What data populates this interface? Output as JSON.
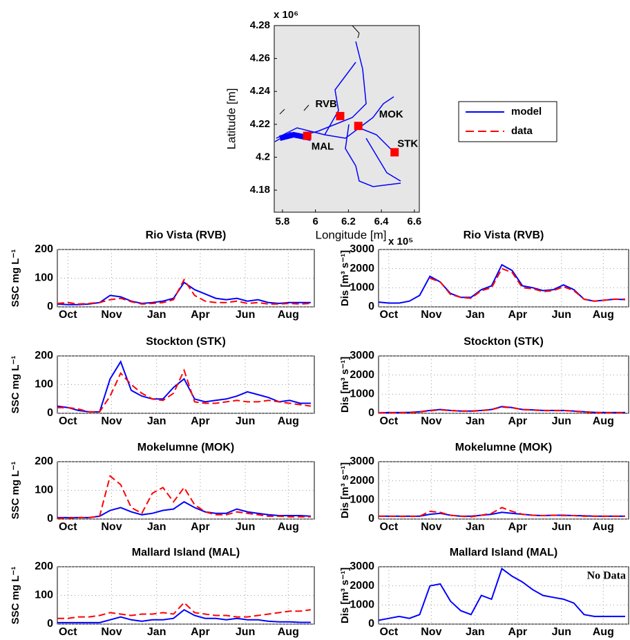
{
  "chart_data": [
    {
      "type": "map",
      "xlabel": "Longitude [m]",
      "ylabel": "Latitude [m]",
      "xmultiplier": "x 10⁵",
      "ymultiplier": "x 10⁶",
      "xlim": [
        5.75,
        6.63
      ],
      "ylim": [
        4.1666,
        4.28
      ],
      "xticks": [
        5.8,
        6,
        6.2,
        6.4,
        6.6
      ],
      "yticks": [
        4.18,
        4.2,
        4.22,
        4.24,
        4.26,
        4.28
      ],
      "stations": [
        {
          "label": "RVB",
          "x": 6.15,
          "y": 4.225
        },
        {
          "label": "MOK",
          "x": 6.26,
          "y": 4.219
        },
        {
          "label": "MAL",
          "x": 5.95,
          "y": 4.213
        },
        {
          "label": "STK",
          "x": 6.48,
          "y": 4.203
        }
      ],
      "station_color": "#ff0000",
      "legend": [
        {
          "name": "model",
          "color": "#0000ff",
          "dash": false
        },
        {
          "name": "data",
          "color": "#ff0000",
          "dash": true
        }
      ]
    },
    {
      "type": "line",
      "title": "Rio Vista (RVB)",
      "ylabel": "SSC mg L⁻¹",
      "x": [
        0,
        15,
        30,
        45,
        60,
        75,
        90,
        105,
        120,
        135,
        150,
        165,
        180,
        195,
        210,
        225,
        240,
        255,
        270,
        285,
        300,
        315,
        330,
        345,
        360
      ],
      "xlim": [
        0,
        365
      ],
      "xticks": [
        {
          "value": 15,
          "label": "Oct"
        },
        {
          "value": 77,
          "label": "Nov"
        },
        {
          "value": 141,
          "label": "Jan"
        },
        {
          "value": 203,
          "label": "Apr"
        },
        {
          "value": 267,
          "label": "Jun"
        },
        {
          "value": 328,
          "label": "Aug"
        }
      ],
      "ylim": [
        0,
        200
      ],
      "yticks": [
        0,
        100,
        200
      ],
      "grid": true,
      "series": [
        {
          "color": "#0000ff",
          "dash": false,
          "values": [
            10,
            8,
            8,
            10,
            15,
            40,
            35,
            20,
            12,
            15,
            20,
            30,
            85,
            60,
            45,
            30,
            25,
            30,
            20,
            25,
            15,
            12,
            15,
            15,
            15
          ]
        },
        {
          "color": "#ff0000",
          "dash": true,
          "values": [
            12,
            15,
            10,
            12,
            15,
            25,
            30,
            18,
            10,
            12,
            15,
            25,
            95,
            40,
            20,
            15,
            15,
            20,
            12,
            15,
            10,
            10,
            12,
            10,
            12
          ]
        }
      ]
    },
    {
      "type": "line",
      "title": "Rio Vista (RVB)",
      "ylabel": "Dis [m³ s⁻¹]",
      "x": [
        0,
        15,
        30,
        45,
        60,
        75,
        90,
        105,
        120,
        135,
        150,
        165,
        180,
        195,
        210,
        225,
        240,
        255,
        270,
        285,
        300,
        315,
        330,
        345,
        360
      ],
      "xlim": [
        0,
        365
      ],
      "xticks": [
        {
          "value": 15,
          "label": "Oct"
        },
        {
          "value": 77,
          "label": "Nov"
        },
        {
          "value": 141,
          "label": "Jan"
        },
        {
          "value": 203,
          "label": "Apr"
        },
        {
          "value": 267,
          "label": "Jun"
        },
        {
          "value": 328,
          "label": "Aug"
        }
      ],
      "ylim": [
        0,
        3000
      ],
      "yticks": [
        0,
        1000,
        2000,
        3000
      ],
      "grid": true,
      "series": [
        {
          "color": "#0000ff",
          "dash": false,
          "values": [
            250,
            200,
            200,
            300,
            600,
            1600,
            1300,
            700,
            500,
            500,
            900,
            1100,
            2200,
            1900,
            1100,
            1000,
            850,
            900,
            1150,
            900,
            400,
            300,
            350,
            400,
            380
          ]
        },
        {
          "color": "#ff0000",
          "dash": true,
          "values": [
            null,
            null,
            null,
            null,
            null,
            1500,
            1300,
            650,
            500,
            450,
            850,
            1000,
            2000,
            1800,
            1000,
            950,
            800,
            850,
            1050,
            850,
            400,
            300,
            350,
            400,
            400
          ]
        }
      ]
    },
    {
      "type": "line",
      "title": "Stockton (STK)",
      "ylabel": "SSC mg L⁻¹",
      "x": [
        0,
        15,
        30,
        45,
        60,
        75,
        90,
        105,
        120,
        135,
        150,
        165,
        180,
        195,
        210,
        225,
        240,
        255,
        270,
        285,
        300,
        315,
        330,
        345,
        360
      ],
      "xlim": [
        0,
        365
      ],
      "xticks": [
        {
          "value": 15,
          "label": "Oct"
        },
        {
          "value": 77,
          "label": "Nov"
        },
        {
          "value": 141,
          "label": "Jan"
        },
        {
          "value": 203,
          "label": "Apr"
        },
        {
          "value": 267,
          "label": "Jun"
        },
        {
          "value": 328,
          "label": "Aug"
        }
      ],
      "ylim": [
        0,
        200
      ],
      "yticks": [
        0,
        100,
        200
      ],
      "grid": true,
      "series": [
        {
          "color": "#0000ff",
          "dash": false,
          "values": [
            25,
            20,
            10,
            5,
            5,
            120,
            180,
            80,
            60,
            50,
            50,
            90,
            120,
            50,
            40,
            45,
            50,
            60,
            75,
            65,
            55,
            40,
            45,
            35,
            35
          ]
        },
        {
          "color": "#ff0000",
          "dash": true,
          "values": [
            20,
            20,
            15,
            5,
            5,
            60,
            140,
            100,
            70,
            50,
            45,
            70,
            150,
            40,
            35,
            35,
            40,
            45,
            40,
            40,
            45,
            40,
            35,
            30,
            25
          ]
        }
      ]
    },
    {
      "type": "line",
      "title": "Stockton (STK)",
      "ylabel": "Dis [m³ s⁻¹]",
      "x": [
        0,
        15,
        30,
        45,
        60,
        75,
        90,
        105,
        120,
        135,
        150,
        165,
        180,
        195,
        210,
        225,
        240,
        255,
        270,
        285,
        300,
        315,
        330,
        345,
        360
      ],
      "xlim": [
        0,
        365
      ],
      "xticks": [
        {
          "value": 15,
          "label": "Oct"
        },
        {
          "value": 77,
          "label": "Nov"
        },
        {
          "value": 141,
          "label": "Jan"
        },
        {
          "value": 203,
          "label": "Apr"
        },
        {
          "value": 267,
          "label": "Jun"
        },
        {
          "value": 328,
          "label": "Aug"
        }
      ],
      "ylim": [
        0,
        3000
      ],
      "yticks": [
        0,
        1000,
        2000,
        3000
      ],
      "grid": true,
      "series": [
        {
          "color": "#0000ff",
          "dash": false,
          "values": [
            30,
            40,
            40,
            50,
            80,
            150,
            200,
            150,
            120,
            120,
            150,
            200,
            350,
            300,
            200,
            180,
            150,
            150,
            150,
            120,
            80,
            50,
            40,
            40,
            40
          ]
        },
        {
          "color": "#ff0000",
          "dash": true,
          "values": [
            20,
            30,
            30,
            40,
            70,
            130,
            180,
            140,
            120,
            110,
            140,
            190,
            330,
            290,
            190,
            170,
            140,
            140,
            140,
            110,
            70,
            40,
            30,
            30,
            30
          ]
        }
      ]
    },
    {
      "type": "line",
      "title": "Mokelumne (MOK)",
      "ylabel": "SSC mg L⁻¹",
      "x": [
        0,
        15,
        30,
        45,
        60,
        75,
        90,
        105,
        120,
        135,
        150,
        165,
        180,
        195,
        210,
        225,
        240,
        255,
        270,
        285,
        300,
        315,
        330,
        345,
        360
      ],
      "xlim": [
        0,
        365
      ],
      "xticks": [
        {
          "value": 15,
          "label": "Oct"
        },
        {
          "value": 77,
          "label": "Nov"
        },
        {
          "value": 141,
          "label": "Jan"
        },
        {
          "value": 203,
          "label": "Apr"
        },
        {
          "value": 267,
          "label": "Jun"
        },
        {
          "value": 328,
          "label": "Aug"
        }
      ],
      "ylim": [
        0,
        200
      ],
      "yticks": [
        0,
        100,
        200
      ],
      "grid": true,
      "series": [
        {
          "color": "#0000ff",
          "dash": false,
          "values": [
            5,
            5,
            5,
            5,
            10,
            30,
            40,
            25,
            15,
            20,
            30,
            35,
            60,
            40,
            25,
            20,
            20,
            35,
            25,
            20,
            15,
            12,
            12,
            12,
            10
          ]
        },
        {
          "color": "#ff0000",
          "dash": true,
          "values": [
            3,
            3,
            5,
            5,
            10,
            150,
            120,
            40,
            20,
            90,
            110,
            60,
            110,
            50,
            25,
            15,
            15,
            25,
            20,
            15,
            10,
            10,
            8,
            8,
            8
          ]
        }
      ]
    },
    {
      "type": "line",
      "title": "Mokelumne (MOK)",
      "ylabel": "Dis [m³ s⁻¹]",
      "x": [
        0,
        15,
        30,
        45,
        60,
        75,
        90,
        105,
        120,
        135,
        150,
        165,
        180,
        195,
        210,
        225,
        240,
        255,
        270,
        285,
        300,
        315,
        330,
        345,
        360
      ],
      "xlim": [
        0,
        365
      ],
      "xticks": [
        {
          "value": 15,
          "label": "Oct"
        },
        {
          "value": 77,
          "label": "Nov"
        },
        {
          "value": 141,
          "label": "Jan"
        },
        {
          "value": 203,
          "label": "Apr"
        },
        {
          "value": 267,
          "label": "Jun"
        },
        {
          "value": 328,
          "label": "Aug"
        }
      ],
      "ylim": [
        0,
        3000
      ],
      "yticks": [
        0,
        1000,
        2000,
        3000
      ],
      "grid": true,
      "series": [
        {
          "color": "#0000ff",
          "dash": false,
          "values": [
            150,
            150,
            150,
            150,
            150,
            250,
            300,
            200,
            150,
            150,
            200,
            250,
            350,
            300,
            250,
            200,
            180,
            200,
            200,
            180,
            170,
            150,
            150,
            150,
            150
          ]
        },
        {
          "color": "#ff0000",
          "dash": true,
          "values": [
            150,
            150,
            140,
            140,
            150,
            400,
            350,
            200,
            150,
            120,
            200,
            300,
            600,
            400,
            250,
            200,
            180,
            200,
            180,
            180,
            150,
            150,
            150,
            150,
            150
          ]
        }
      ]
    },
    {
      "type": "line",
      "title": "Mallard Island (MAL)",
      "ylabel": "SSC mg L⁻¹",
      "x": [
        0,
        15,
        30,
        45,
        60,
        75,
        90,
        105,
        120,
        135,
        150,
        165,
        180,
        195,
        210,
        225,
        240,
        255,
        270,
        285,
        300,
        315,
        330,
        345,
        360
      ],
      "xlim": [
        0,
        365
      ],
      "xticks": [
        {
          "value": 15,
          "label": "Oct"
        },
        {
          "value": 77,
          "label": "Nov"
        },
        {
          "value": 141,
          "label": "Jan"
        },
        {
          "value": 203,
          "label": "Apr"
        },
        {
          "value": 267,
          "label": "Jun"
        },
        {
          "value": 328,
          "label": "Aug"
        }
      ],
      "ylim": [
        0,
        200
      ],
      "yticks": [
        0,
        100,
        200
      ],
      "grid": true,
      "series": [
        {
          "color": "#0000ff",
          "dash": false,
          "values": [
            5,
            5,
            5,
            5,
            5,
            15,
            25,
            15,
            10,
            15,
            15,
            20,
            50,
            30,
            20,
            20,
            15,
            20,
            15,
            15,
            10,
            8,
            8,
            6,
            6
          ]
        },
        {
          "color": "#ff0000",
          "dash": true,
          "values": [
            20,
            20,
            25,
            25,
            30,
            40,
            35,
            30,
            35,
            35,
            40,
            35,
            75,
            40,
            35,
            30,
            30,
            25,
            25,
            30,
            35,
            40,
            45,
            45,
            50
          ]
        }
      ]
    },
    {
      "type": "line",
      "title": "Mallard Island (MAL)",
      "ylabel": "Dis [m³ s⁻¹]",
      "annotation": "No Data",
      "x": [
        0,
        15,
        30,
        45,
        60,
        75,
        90,
        105,
        120,
        135,
        150,
        165,
        180,
        195,
        210,
        225,
        240,
        255,
        270,
        285,
        300,
        315,
        330,
        345,
        360
      ],
      "xlim": [
        0,
        365
      ],
      "xticks": [
        {
          "value": 15,
          "label": "Oct"
        },
        {
          "value": 77,
          "label": "Nov"
        },
        {
          "value": 141,
          "label": "Jan"
        },
        {
          "value": 203,
          "label": "Apr"
        },
        {
          "value": 267,
          "label": "Jun"
        },
        {
          "value": 328,
          "label": "Aug"
        }
      ],
      "ylim": [
        0,
        3000
      ],
      "yticks": [
        0,
        1000,
        2000,
        3000
      ],
      "grid": true,
      "series": [
        {
          "color": "#0000ff",
          "dash": false,
          "values": [
            200,
            300,
            400,
            300,
            500,
            2000,
            2100,
            1200,
            700,
            500,
            1500,
            1300,
            2900,
            2500,
            2200,
            1800,
            1500,
            1400,
            1300,
            1100,
            500,
            400,
            400,
            400,
            400
          ]
        }
      ]
    }
  ]
}
